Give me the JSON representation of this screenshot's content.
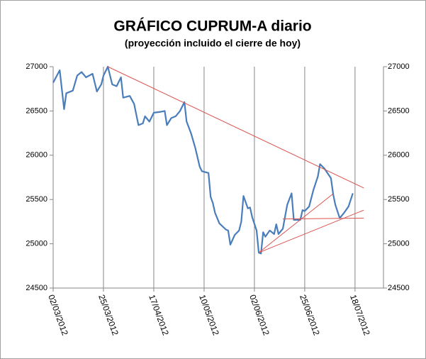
{
  "chart_data": {
    "type": "line",
    "title": "GRÁFICO  CUPRUM-A  diario",
    "subtitle": "(proyección  incluido  el cierre de hoy)",
    "x": [
      "02/03/2012",
      "05/03/2012",
      "07/03/2012",
      "08/03/2012",
      "11/03/2012",
      "13/03/2012",
      "15/03/2012",
      "17/03/2012",
      "20/03/2012",
      "22/03/2012",
      "24/03/2012",
      "25/03/2012",
      "27/03/2012",
      "29/03/2012",
      "31/03/2012",
      "02/04/2012",
      "03/04/2012",
      "06/04/2012",
      "08/04/2012",
      "10/04/2012",
      "12/04/2012",
      "13/04/2012",
      "15/04/2012",
      "17/04/2012",
      "20/04/2012",
      "22/04/2012",
      "23/04/2012",
      "25/04/2012",
      "27/04/2012",
      "29/04/2012",
      "01/05/2012",
      "02/05/2012",
      "04/05/2012",
      "06/05/2012",
      "08/05/2012",
      "09/05/2012",
      "12/05/2012",
      "13/05/2012",
      "14/05/2012",
      "15/05/2012",
      "17/05/2012",
      "20/05/2012",
      "21/05/2012",
      "22/05/2012",
      "24/05/2012",
      "26/05/2012",
      "27/05/2012",
      "28/05/2012",
      "30/05/2012",
      "31/05/2012",
      "01/06/2012",
      "03/06/2012",
      "04/06/2012",
      "05/06/2012",
      "06/06/2012",
      "07/06/2012",
      "09/06/2012",
      "11/06/2012",
      "12/06/2012",
      "13/06/2012",
      "15/06/2012",
      "17/06/2012",
      "19/06/2012",
      "20/06/2012",
      "23/06/2012",
      "24/06/2012",
      "25/06/2012",
      "27/06/2012",
      "29/06/2012",
      "01/07/2012",
      "02/07/2012",
      "04/07/2012",
      "07/07/2012",
      "08/07/2012",
      "09/07/2012",
      "11/07/2012",
      "13/07/2012",
      "15/07/2012",
      "17/07/2012"
    ],
    "series": [
      {
        "color": "#4a7ebb",
        "values": [
          26820,
          26960,
          26520,
          26700,
          26730,
          26900,
          26940,
          26880,
          26920,
          26720,
          26800,
          26900,
          27000,
          26800,
          26780,
          26880,
          26650,
          26670,
          26580,
          26340,
          26360,
          26440,
          26380,
          26480,
          26490,
          26500,
          26340,
          26420,
          26440,
          26500,
          26600,
          26380,
          26250,
          26080,
          25870,
          25820,
          25800,
          25530,
          25460,
          25350,
          25230,
          25160,
          25150,
          24990,
          25100,
          25150,
          25250,
          25540,
          25400,
          25410,
          25300,
          25150,
          24900,
          24890,
          25130,
          25080,
          25150,
          25110,
          25220,
          25110,
          25170,
          25440,
          25570,
          25270,
          25270,
          25380,
          25370,
          25420,
          25610,
          25760,
          25900,
          25850,
          25740,
          25560,
          25440,
          25290,
          25350,
          25420,
          25570
        ]
      }
    ],
    "trendlines": [
      {
        "color": "#d9534f",
        "x": [
          "27/03/2012",
          "22/07/2012"
        ],
        "y": [
          27000,
          25630
        ]
      },
      {
        "color": "#d9534f",
        "x": [
          "04/06/2012",
          "08/07/2012"
        ],
        "y": [
          24900,
          25565
        ]
      },
      {
        "color": "#d9534f",
        "x": [
          "04/06/2012",
          "22/07/2012"
        ],
        "y": [
          24900,
          25380
        ]
      },
      {
        "color": "#d9534f",
        "x": [
          "15/06/2012",
          "22/07/2012"
        ],
        "y": [
          25280,
          25290
        ]
      }
    ],
    "xlim": [
      "02/03/2012",
      "31/07/2012"
    ],
    "xticks": [
      "02/03/2012",
      "25/03/2012",
      "17/04/2012",
      "10/05/2012",
      "02/06/2012",
      "25/06/2012",
      "18/07/2012"
    ],
    "ylim": [
      24500,
      27000
    ],
    "yticks": [
      24500,
      25000,
      25500,
      26000,
      26500,
      27000
    ],
    "y2lim": [
      24500,
      27000
    ],
    "y2ticks": [
      24500,
      25000,
      25500,
      26000,
      26500,
      27000
    ],
    "grid": "x"
  }
}
